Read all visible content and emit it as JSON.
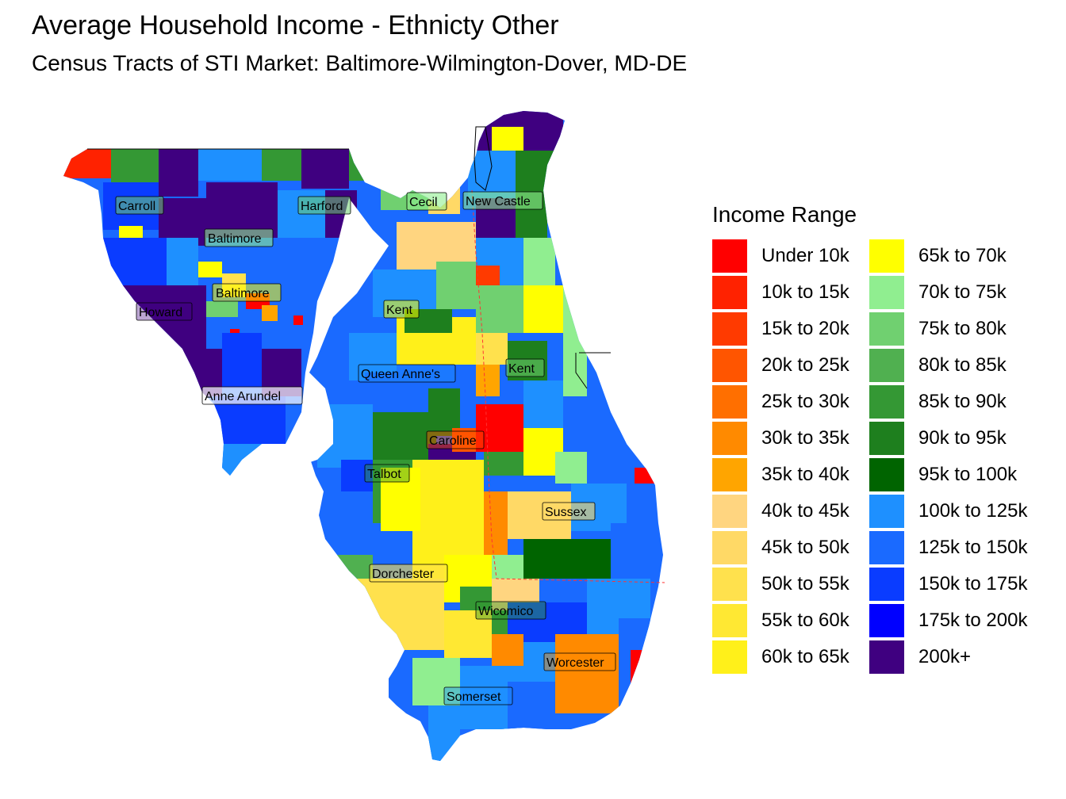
{
  "title": "Average Household Income - Ethnicty Other",
  "subtitle": "Census Tracts of STI Market: Baltimore-Wilmington-Dover, MD-DE",
  "legend": {
    "title": "Income Range",
    "items": [
      {
        "label": "Under 10k",
        "color": "#FF0000"
      },
      {
        "label": "10k to 15k",
        "color": "#FF2200"
      },
      {
        "label": "15k to 20k",
        "color": "#FF3A00"
      },
      {
        "label": "20k to 25k",
        "color": "#FF5500"
      },
      {
        "label": "25k to 30k",
        "color": "#FF6F00"
      },
      {
        "label": "30k to 35k",
        "color": "#FF8A00"
      },
      {
        "label": "35k to 40k",
        "color": "#FFA500"
      },
      {
        "label": "40k to 45k",
        "color": "#FFD580"
      },
      {
        "label": "45k to 50k",
        "color": "#FFD966"
      },
      {
        "label": "50k to 55k",
        "color": "#FFE14D"
      },
      {
        "label": "55k to 60k",
        "color": "#FFE833"
      },
      {
        "label": "60k to 65k",
        "color": "#FFF01A"
      },
      {
        "label": "65k to 70k",
        "color": "#FFFF00"
      },
      {
        "label": "70k to 75k",
        "color": "#90EE90"
      },
      {
        "label": "75k to 80k",
        "color": "#70D070"
      },
      {
        "label": "80k to 85k",
        "color": "#50B050"
      },
      {
        "label": "85k to 90k",
        "color": "#349834"
      },
      {
        "label": "90k to 95k",
        "color": "#1E7F1E"
      },
      {
        "label": "95k to 100k",
        "color": "#006400"
      },
      {
        "label": "100k to 125k",
        "color": "#1E90FF"
      },
      {
        "label": "125k to 150k",
        "color": "#1A6AFF"
      },
      {
        "label": "150k to 175k",
        "color": "#0A3CFF"
      },
      {
        "label": "175k to 200k",
        "color": "#0000FF"
      },
      {
        "label": "200k+",
        "color": "#3F0080"
      }
    ]
  },
  "counties": [
    "Carroll",
    "Harford",
    "Cecil",
    "New Castle",
    "Baltimore",
    "Baltimore",
    "Howard",
    "Kent",
    "Anne Arundel",
    "Queen Anne's",
    "Kent",
    "Caroline",
    "Talbot",
    "Sussex",
    "Dorchester",
    "Wicomico",
    "Worcester",
    "Somerset"
  ]
}
